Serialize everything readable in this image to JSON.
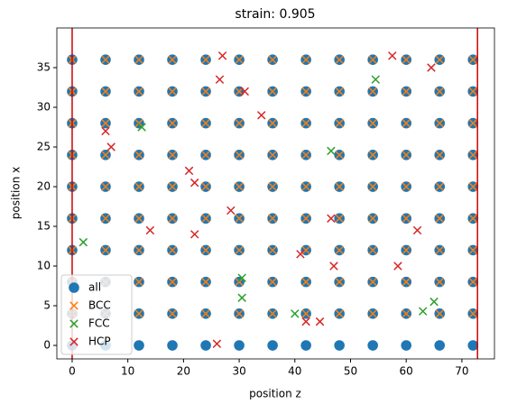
{
  "chart_data": {
    "type": "scatter",
    "title": "strain: 0.905",
    "x_label": "position z",
    "y_label": "position x",
    "xlim": [
      -2.75,
      75.85
    ],
    "ylim": [
      -1.7,
      40
    ],
    "xticks": [
      0,
      10,
      20,
      30,
      40,
      50,
      60,
      70
    ],
    "yticks": [
      0,
      5,
      10,
      15,
      20,
      25,
      30,
      35
    ],
    "legend": "lower left",
    "vlines": {
      "color": "#cc0000",
      "values": [
        0,
        72.8
      ]
    },
    "series": [
      {
        "name": "all",
        "color": "#1f77b4",
        "marker": "o",
        "x": [
          0,
          6,
          12,
          18,
          24,
          30,
          36,
          42,
          48,
          54,
          60,
          66,
          72,
          0,
          6,
          12,
          18,
          24,
          30,
          36,
          42,
          48,
          54,
          60,
          66,
          72,
          0,
          6,
          12,
          18,
          24,
          30,
          36,
          42,
          48,
          54,
          60,
          66,
          72,
          0,
          6,
          12,
          18,
          24,
          30,
          36,
          42,
          48,
          54,
          60,
          66,
          72,
          0,
          6,
          12,
          18,
          24,
          30,
          36,
          42,
          48,
          54,
          60,
          66,
          72,
          0,
          6,
          12,
          18,
          24,
          30,
          36,
          42,
          48,
          54,
          60,
          66,
          72,
          0,
          6,
          12,
          18,
          24,
          30,
          36,
          42,
          48,
          54,
          60,
          66,
          72,
          0,
          6,
          12,
          18,
          24,
          30,
          36,
          42,
          48,
          54,
          60,
          66,
          72,
          0,
          6,
          12,
          18,
          24,
          30,
          36,
          42,
          48,
          54,
          60,
          66,
          72,
          0,
          6,
          12,
          18,
          24,
          30,
          36,
          42,
          48,
          54,
          60,
          66,
          72
        ],
        "values": [
          0,
          0,
          0,
          0,
          0,
          0,
          0,
          0,
          0,
          0,
          0,
          0,
          0,
          4,
          4,
          4,
          4,
          4,
          4,
          4,
          4,
          4,
          4,
          4,
          4,
          4,
          8,
          8,
          8,
          8,
          8,
          8,
          8,
          8,
          8,
          8,
          8,
          8,
          8,
          12,
          12,
          12,
          12,
          12,
          12,
          12,
          12,
          12,
          12,
          12,
          12,
          12,
          16,
          16,
          16,
          16,
          16,
          16,
          16,
          16,
          16,
          16,
          16,
          16,
          16,
          20,
          20,
          20,
          20,
          20,
          20,
          20,
          20,
          20,
          20,
          20,
          20,
          20,
          24,
          24,
          24,
          24,
          24,
          24,
          24,
          24,
          24,
          24,
          24,
          24,
          24,
          28,
          28,
          28,
          28,
          28,
          28,
          28,
          28,
          28,
          28,
          28,
          28,
          28,
          32,
          32,
          32,
          32,
          32,
          32,
          32,
          32,
          32,
          32,
          32,
          32,
          32,
          36,
          36,
          36,
          36,
          36,
          36,
          36,
          36,
          36,
          36,
          36,
          36,
          36
        ]
      },
      {
        "name": "BCC",
        "color": "#ff7f0e",
        "marker": "x",
        "x": [
          0,
          6,
          12,
          18,
          24,
          30,
          36,
          42,
          48,
          54,
          60,
          66,
          72,
          0,
          6,
          12,
          18,
          24,
          30,
          36,
          42,
          48,
          54,
          60,
          66,
          72,
          0,
          6,
          12,
          18,
          24,
          30,
          36,
          42,
          48,
          54,
          60,
          66,
          72,
          0,
          6,
          12,
          18,
          24,
          30,
          36,
          42,
          48,
          54,
          60,
          66,
          72,
          0,
          6,
          12,
          18,
          24,
          30,
          36,
          42,
          48,
          54,
          60,
          66,
          72,
          0,
          6,
          12,
          18,
          24,
          30,
          36,
          42,
          48,
          54,
          60,
          66,
          72,
          0,
          6,
          12,
          18,
          24,
          30,
          36,
          42,
          48,
          54,
          60,
          66,
          72,
          0,
          6,
          12,
          18,
          24,
          30,
          36,
          42,
          48,
          54,
          60,
          66,
          72,
          0,
          6,
          12,
          18,
          24,
          30,
          36,
          42,
          48,
          54,
          60,
          66,
          72
        ],
        "values": [
          4,
          4,
          4,
          4,
          4,
          4,
          4,
          4,
          4,
          4,
          4,
          4,
          4,
          8,
          8,
          8,
          8,
          8,
          8,
          8,
          8,
          8,
          8,
          8,
          8,
          8,
          12,
          12,
          12,
          12,
          12,
          12,
          12,
          12,
          12,
          12,
          12,
          12,
          12,
          16,
          16,
          16,
          16,
          16,
          16,
          16,
          16,
          16,
          16,
          16,
          16,
          16,
          20,
          20,
          20,
          20,
          20,
          20,
          20,
          20,
          20,
          20,
          20,
          20,
          20,
          24,
          24,
          24,
          24,
          24,
          24,
          24,
          24,
          24,
          24,
          24,
          24,
          24,
          28,
          28,
          28,
          28,
          28,
          28,
          28,
          28,
          28,
          28,
          28,
          28,
          28,
          32,
          32,
          32,
          32,
          32,
          32,
          32,
          32,
          32,
          32,
          32,
          32,
          32,
          36,
          36,
          36,
          36,
          36,
          36,
          36,
          36,
          36,
          36,
          36,
          36,
          36
        ]
      },
      {
        "name": "FCC",
        "color": "#2ca02c",
        "marker": "x",
        "x": [
          2,
          12.5,
          30.5,
          30.5,
          40,
          46.5,
          54.5,
          63,
          65
        ],
        "values": [
          13,
          27.5,
          8.5,
          6,
          4,
          24.5,
          33.5,
          4.3,
          5.5
        ]
      },
      {
        "name": "HCP",
        "color": "#d62728",
        "marker": "x",
        "x": [
          6,
          7,
          21,
          22,
          27,
          26.5,
          31,
          34,
          28.5,
          22,
          14,
          41,
          46.5,
          47,
          42,
          44.5,
          58.5,
          62,
          57.5,
          64.5,
          26
        ],
        "values": [
          27,
          25,
          22,
          20.5,
          36.5,
          33.5,
          32,
          29,
          17,
          14,
          14.5,
          11.5,
          16,
          10,
          3,
          3,
          10,
          14.5,
          36.5,
          35,
          0.2
        ]
      }
    ]
  }
}
